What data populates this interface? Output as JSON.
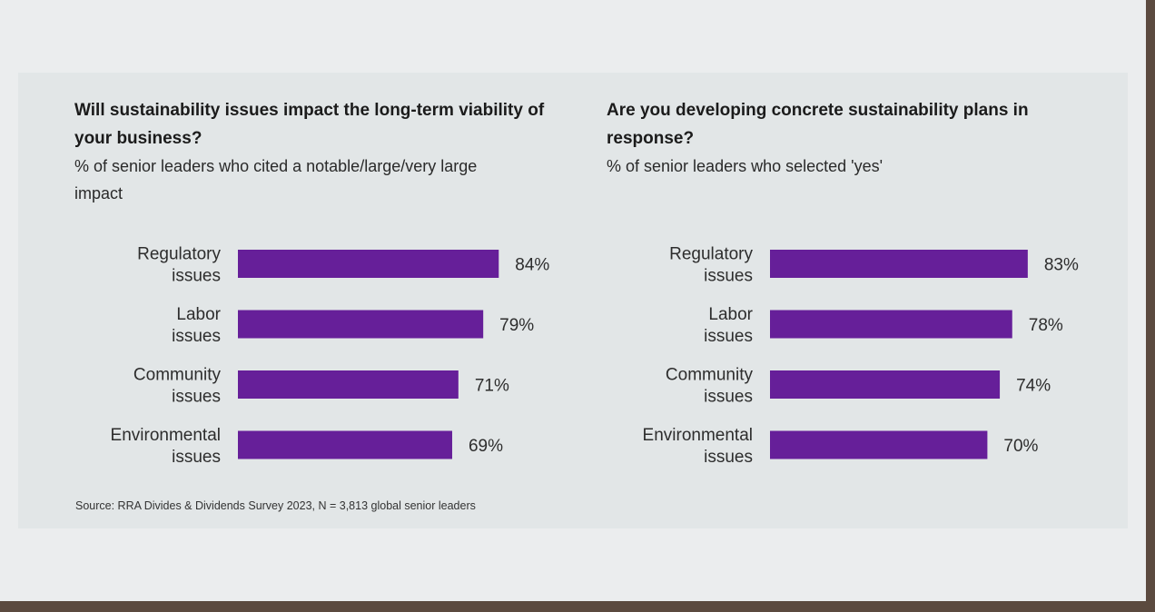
{
  "chart_data": [
    {
      "type": "bar",
      "orientation": "horizontal",
      "title": "Will sustainability issues impact the long-term viability of your business?",
      "subtitle": "% of senior leaders who cited a notable/large/very large impact",
      "categories": [
        [
          "Regulatory",
          "issues"
        ],
        [
          "Labor",
          "issues"
        ],
        [
          "Community",
          "issues"
        ],
        [
          "Environmental",
          "issues"
        ]
      ],
      "values": [
        84,
        79,
        71,
        69
      ],
      "value_labels": [
        "84%",
        "79%",
        "71%",
        "69%"
      ],
      "xlim": [
        0,
        100
      ],
      "grid": false,
      "bar_color": "#661f99"
    },
    {
      "type": "bar",
      "orientation": "horizontal",
      "title": "Are you developing concrete sustainability plans in response?",
      "subtitle": "% of senior leaders who selected 'yes'",
      "categories": [
        [
          "Regulatory",
          "issues"
        ],
        [
          "Labor",
          "issues"
        ],
        [
          "Community",
          "issues"
        ],
        [
          "Environmental",
          "issues"
        ]
      ],
      "values": [
        83,
        78,
        74,
        70
      ],
      "value_labels": [
        "83%",
        "78%",
        "74%",
        "70%"
      ],
      "xlim": [
        0,
        100
      ],
      "grid": false,
      "bar_color": "#661f99"
    }
  ],
  "source": "Source: RRA Divides & Dividends Survey 2023, N = 3,813 global senior leaders"
}
